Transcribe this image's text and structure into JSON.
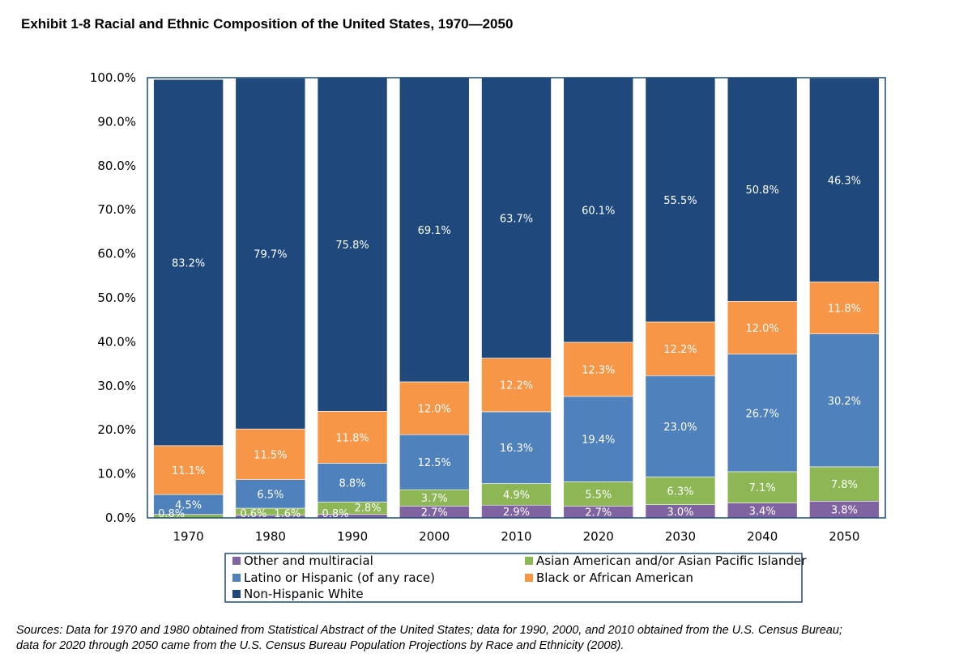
{
  "title": "Exhibit 1-8 Racial and Ethnic Composition of the United States, 1970—2050",
  "sources": [
    "Sources: Data for 1970 and 1980 obtained from Statistical Abstract of the United States; data for 1990, 2000, and 2010 obtained from the U.S. Census Bureau;",
    "data for 2020 through 2050 came from the U.S. Census Bureau Population Projections by Race and Ethnicity (2008)."
  ],
  "chart_data": {
    "type": "bar",
    "stacked": true,
    "categories": [
      "1970",
      "1980",
      "1990",
      "2000",
      "2010",
      "2020",
      "2030",
      "2040",
      "2050"
    ],
    "series": [
      {
        "name": "Other and multiracial",
        "color": "#8064a2",
        "values": [
          0.0,
          0.6,
          0.8,
          2.7,
          2.9,
          2.7,
          3.0,
          3.4,
          3.8
        ],
        "labels": [
          "",
          "0.6%",
          "0.8%",
          "2.7%",
          "2.9%",
          "2.7%",
          "3.0%",
          "3.4%",
          "3.8%"
        ]
      },
      {
        "name": "Asian American and/or Asian Pacific Islander",
        "color": "#8db654",
        "values": [
          0.8,
          1.6,
          2.8,
          3.7,
          4.9,
          5.5,
          6.3,
          7.1,
          7.8
        ],
        "labels": [
          "0.8%",
          "1.6%",
          "2.8%",
          "3.7%",
          "4.9%",
          "5.5%",
          "6.3%",
          "7.1%",
          "7.8%"
        ]
      },
      {
        "name": "Latino or Hispanic (of any race)",
        "color": "#4f81bd",
        "values": [
          4.5,
          6.5,
          8.8,
          12.5,
          16.3,
          19.4,
          23.0,
          26.7,
          30.2
        ],
        "labels": [
          "4.5%",
          "6.5%",
          "8.8%",
          "12.5%",
          "16.3%",
          "19.4%",
          "23.0%",
          "26.7%",
          "30.2%"
        ]
      },
      {
        "name": "Black or African American",
        "color": "#f79646",
        "values": [
          11.1,
          11.5,
          11.8,
          12.0,
          12.2,
          12.3,
          12.2,
          12.0,
          11.8
        ],
        "labels": [
          "11.1%",
          "11.5%",
          "11.8%",
          "12.0%",
          "12.2%",
          "12.3%",
          "12.2%",
          "12.0%",
          "11.8%"
        ]
      },
      {
        "name": "Non-Hispanic White",
        "color": "#1f497d",
        "values": [
          83.2,
          79.7,
          75.8,
          69.1,
          63.7,
          60.1,
          55.5,
          50.8,
          46.3
        ],
        "labels": [
          "83.2%",
          "79.7%",
          "75.8%",
          "69.1%",
          "63.7%",
          "60.1%",
          "55.5%",
          "50.8%",
          "46.3%"
        ]
      }
    ],
    "ylim": [
      0,
      100
    ],
    "yticks": [
      "0.0%",
      "10.0%",
      "20.0%",
      "30.0%",
      "40.0%",
      "50.0%",
      "60.0%",
      "70.0%",
      "80.0%",
      "90.0%",
      "100.0%"
    ],
    "xlabel": "",
    "ylabel": "",
    "grid": false,
    "legend": "bottom",
    "legend_order": [
      0,
      1,
      2,
      3,
      4
    ]
  }
}
